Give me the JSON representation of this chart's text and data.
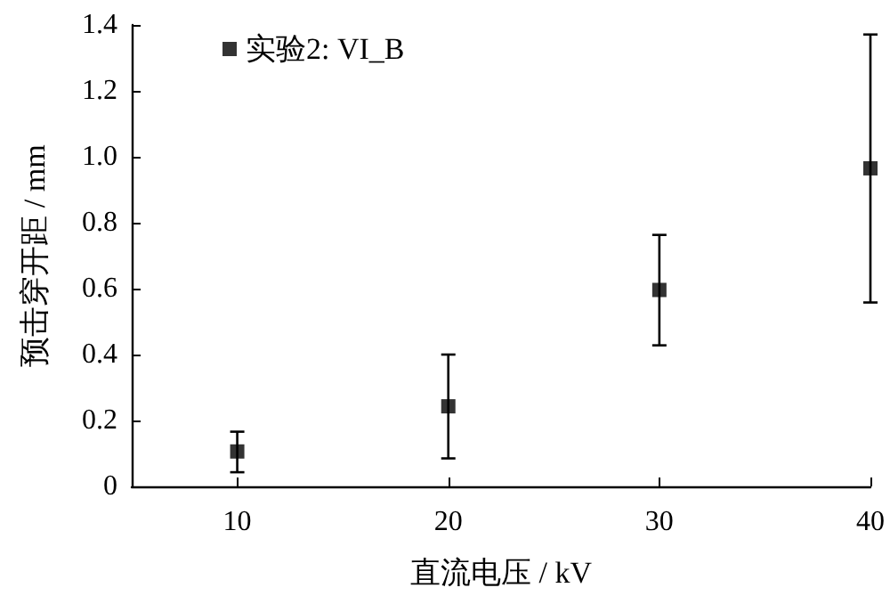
{
  "chart_data": {
    "type": "scatter",
    "xlabel": "直流电压 / kV",
    "ylabel": "预击穿开距 / mm",
    "x": [
      10,
      20,
      30,
      40
    ],
    "series": [
      {
        "name": "实验2: VI_B",
        "color": "#000000",
        "values": [
          0.106,
          0.243,
          0.596,
          0.965
        ],
        "errors": [
          [
            0.043,
            0.166
          ],
          [
            0.085,
            0.4
          ],
          [
            0.428,
            0.763
          ],
          [
            0.558,
            1.371
          ]
        ]
      }
    ],
    "xlim": [
      5,
      40
    ],
    "xticks": [
      10,
      20,
      30,
      40
    ],
    "ylim": [
      0,
      1.4
    ],
    "yticks": [
      0,
      0.2,
      0.4,
      0.6,
      0.8,
      {
        "value": 1,
        "label": "1.0"
      },
      1.2,
      1.4
    ],
    "grid": false,
    "legend": "top left",
    "marker": "square"
  }
}
